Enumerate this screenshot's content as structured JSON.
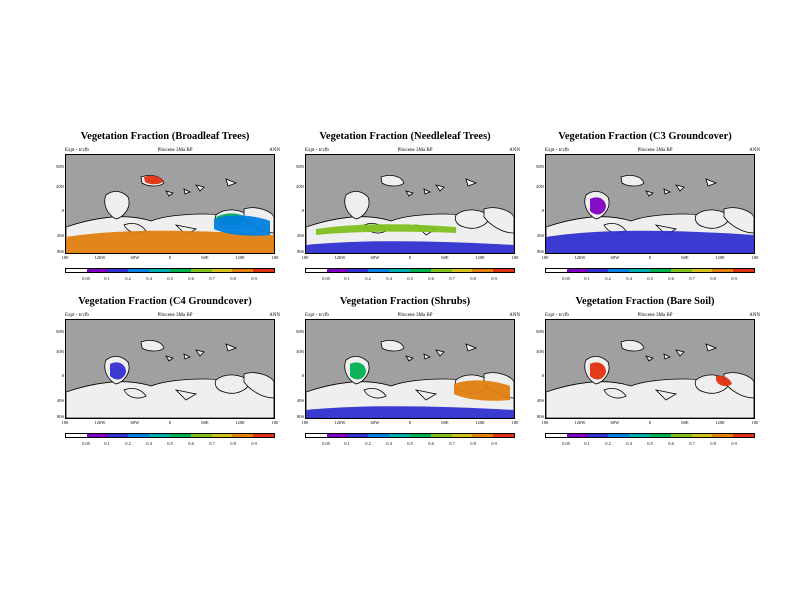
{
  "header": {
    "experiment": "Expt - tcvfb",
    "period": "Pliocene 3Ma BP",
    "season": "ANN"
  },
  "axes": {
    "y_ticks": [
      "80N",
      "40N",
      "0",
      "40S",
      "80S"
    ],
    "x_ticks": [
      "180",
      "120W",
      "60W",
      "0",
      "60E",
      "120E",
      "180"
    ]
  },
  "colorbar": {
    "labels": [
      "0.05",
      "0.1",
      "0.2",
      "0.4",
      "0.5",
      "0.6",
      "0.7",
      "0.8",
      "0.9"
    ],
    "colors": [
      "#ffffff",
      "#8000c0",
      "#3030d0",
      "#0080e0",
      "#00b0b0",
      "#00b050",
      "#80c020",
      "#d0c020",
      "#e08010",
      "#e03010"
    ]
  },
  "colors": {
    "ocean": "#a0a0a0",
    "land_none": "#efefef",
    "coast": "#000000"
  },
  "panels": [
    {
      "id": "broadleaf",
      "title": "Vegetation Fraction (Broadleaf Trees)",
      "fields": [
        {
          "region": "south",
          "level": 0.8
        },
        {
          "region": "africa-south",
          "level": 0.5
        },
        {
          "region": "australasia",
          "level": 0.3
        },
        {
          "region": "siberia",
          "level": 0.9
        }
      ]
    },
    {
      "id": "needleleaf",
      "title": "Vegetation Fraction (Needleleaf Trees)",
      "fields": [
        {
          "region": "south-band",
          "level": 0.1
        },
        {
          "region": "mid-band",
          "level": 0.6
        }
      ]
    },
    {
      "id": "c3",
      "title": "Vegetation Fraction (C3 Groundcover)",
      "fields": [
        {
          "region": "south",
          "level": 0.1
        },
        {
          "region": "africa",
          "level": 0.05
        }
      ]
    },
    {
      "id": "c4",
      "title": "Vegetation Fraction (C4 Groundcover)",
      "fields": [
        {
          "region": "africa",
          "level": 0.1
        }
      ]
    },
    {
      "id": "shrubs",
      "title": "Vegetation Fraction (Shrubs)",
      "fields": [
        {
          "region": "australasia",
          "level": 0.8
        },
        {
          "region": "south-band",
          "level": 0.1
        },
        {
          "region": "africa",
          "level": 0.5
        }
      ]
    },
    {
      "id": "baresoil",
      "title": "Vegetation Fraction (Bare Soil)",
      "fields": [
        {
          "region": "africa",
          "level": 0.9
        },
        {
          "region": "east",
          "level": 0.9
        }
      ]
    }
  ]
}
